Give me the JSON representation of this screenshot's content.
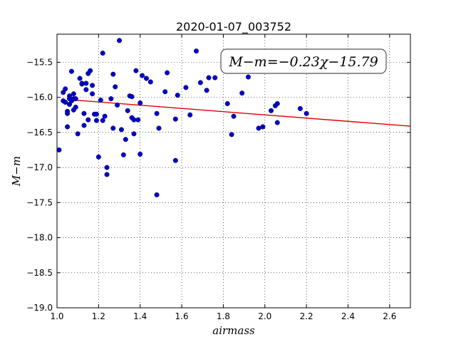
{
  "chart_data": {
    "type": "scatter",
    "title": "2020-01-07_003752",
    "xlabel": "airmass",
    "ylabel": "M−m",
    "xlim": [
      1.0,
      2.7
    ],
    "ylim": [
      -19.0,
      -15.1
    ],
    "y_inverted": true,
    "grid": true,
    "x_ticks": [
      "1.0",
      "1.2",
      "1.4",
      "1.6",
      "1.8",
      "2.0",
      "2.2",
      "2.4",
      "2.6"
    ],
    "y_ticks": [
      "−15.5",
      "−16.0",
      "−16.5",
      "−17.0",
      "−17.5",
      "−18.0",
      "−18.5",
      "−19.0"
    ],
    "annotation": "M−m=−0.23χ−15.79",
    "fit": {
      "slope": -0.23,
      "intercept": -15.79,
      "color": "#e00000"
    },
    "point_color": "#0000cc",
    "points": [
      [
        1.01,
        -16.75
      ],
      [
        1.03,
        -15.93
      ],
      [
        1.03,
        -16.05
      ],
      [
        1.04,
        -15.88
      ],
      [
        1.04,
        -16.07
      ],
      [
        1.05,
        -16.42
      ],
      [
        1.05,
        -16.2
      ],
      [
        1.05,
        -16.23
      ],
      [
        1.06,
        -15.98
      ],
      [
        1.06,
        -16.1
      ],
      [
        1.06,
        -16.02
      ],
      [
        1.07,
        -15.63
      ],
      [
        1.07,
        -16.05
      ],
      [
        1.08,
        -15.95
      ],
      [
        1.08,
        -16.18
      ],
      [
        1.08,
        -16.02
      ],
      [
        1.09,
        -16.14
      ],
      [
        1.09,
        -16.02
      ],
      [
        1.1,
        -16.52
      ],
      [
        1.11,
        -15.73
      ],
      [
        1.12,
        -15.8
      ],
      [
        1.12,
        -15.81
      ],
      [
        1.13,
        -16.4
      ],
      [
        1.13,
        -16.23
      ],
      [
        1.14,
        -15.8
      ],
      [
        1.14,
        -15.89
      ],
      [
        1.15,
        -15.66
      ],
      [
        1.15,
        -16.32
      ],
      [
        1.16,
        -15.62
      ],
      [
        1.17,
        -15.83
      ],
      [
        1.17,
        -15.95
      ],
      [
        1.18,
        -16.24
      ],
      [
        1.19,
        -16.33
      ],
      [
        1.19,
        -16.24
      ],
      [
        1.2,
        -16.85
      ],
      [
        1.21,
        -16.04
      ],
      [
        1.22,
        -15.37
      ],
      [
        1.22,
        -16.33
      ],
      [
        1.23,
        -16.27
      ],
      [
        1.24,
        -17.0
      ],
      [
        1.24,
        -17.1
      ],
      [
        1.26,
        -16.02
      ],
      [
        1.27,
        -15.67
      ],
      [
        1.27,
        -16.44
      ],
      [
        1.28,
        -15.85
      ],
      [
        1.29,
        -16.11
      ],
      [
        1.3,
        -15.19
      ],
      [
        1.31,
        -16.46
      ],
      [
        1.32,
        -16.82
      ],
      [
        1.33,
        -16.6
      ],
      [
        1.34,
        -16.19
      ],
      [
        1.35,
        -15.98
      ],
      [
        1.36,
        -16.29
      ],
      [
        1.36,
        -15.99
      ],
      [
        1.37,
        -16.52
      ],
      [
        1.37,
        -16.32
      ],
      [
        1.38,
        -15.62
      ],
      [
        1.39,
        -16.32
      ],
      [
        1.4,
        -16.08
      ],
      [
        1.4,
        -16.81
      ],
      [
        1.41,
        -15.69
      ],
      [
        1.43,
        -15.73
      ],
      [
        1.45,
        -15.78
      ],
      [
        1.48,
        -16.23
      ],
      [
        1.48,
        -17.39
      ],
      [
        1.49,
        -16.44
      ],
      [
        1.52,
        -15.92
      ],
      [
        1.53,
        -15.65
      ],
      [
        1.57,
        -16.31
      ],
      [
        1.57,
        -16.9
      ],
      [
        1.58,
        -15.97
      ],
      [
        1.62,
        -15.86
      ],
      [
        1.64,
        -16.25
      ],
      [
        1.67,
        -15.34
      ],
      [
        1.69,
        -15.79
      ],
      [
        1.72,
        -15.9
      ],
      [
        1.73,
        -15.72
      ],
      [
        1.76,
        -15.72
      ],
      [
        1.82,
        -16.09
      ],
      [
        1.84,
        -16.53
      ],
      [
        1.85,
        -16.27
      ],
      [
        1.89,
        -15.94
      ],
      [
        1.92,
        -15.71
      ],
      [
        1.97,
        -16.44
      ],
      [
        1.99,
        -16.42
      ],
      [
        2.03,
        -16.19
      ],
      [
        2.05,
        -16.12
      ],
      [
        2.06,
        -16.09
      ],
      [
        2.06,
        -16.36
      ],
      [
        2.17,
        -16.16
      ],
      [
        2.2,
        -16.23
      ]
    ]
  }
}
